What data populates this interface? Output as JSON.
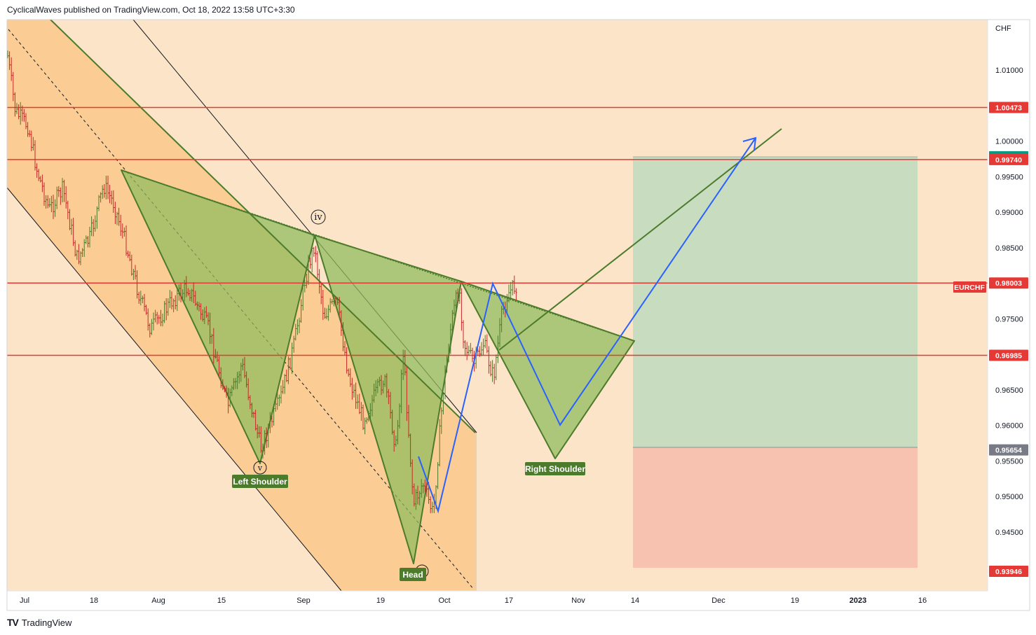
{
  "header": {
    "text": "CyclicalWaves published on TradingView.com, Oct 18, 2022 13:58 UTC+3:30"
  },
  "footer": {
    "logo": "TV",
    "brand": "TradingView"
  },
  "colors": {
    "background": "#fce4c8",
    "channel_fill": "#fbcd95",
    "pattern_fill": "#8fbb5c",
    "pattern_stroke": "#4b7b2b",
    "projection_blue": "#2962ff",
    "level_red": "#e53935",
    "target_zone": "#c8dcc0",
    "stop_zone": "#f8c2b0",
    "candle_up": "#4b7b2b",
    "candle_down": "#c62828"
  },
  "chart_data": {
    "type": "candlestick",
    "symbol": "EURCHF",
    "currency": "CHF",
    "x_ticks": [
      "Jul",
      "18",
      "Aug",
      "15",
      "Sep",
      "19",
      "Oct",
      "17",
      "Nov",
      "14",
      "Dec",
      "19",
      "2023",
      "16"
    ],
    "y_ticks": [
      "1.01000",
      "1.00000",
      "0.99500",
      "0.99000",
      "0.98500",
      "0.98000",
      "0.97500",
      "0.96500",
      "0.96000",
      "0.95500",
      "0.95000",
      "0.94500"
    ],
    "ylim": [
      0.9375,
      1.0125
    ],
    "horizontal_levels": [
      1.00473,
      0.9974,
      0.98003,
      0.96985
    ],
    "price_tags": [
      {
        "value": 1.00473,
        "label": "1.00473",
        "color": "#e53935"
      },
      {
        "value": 0.99779,
        "label": "0.99779",
        "color": "#089981"
      },
      {
        "value": 0.9974,
        "label": "0.99740",
        "color": "#e53935"
      },
      {
        "value": 0.98003,
        "label": "0.98003",
        "color": "#e53935"
      },
      {
        "value": 0.96985,
        "label": "0.96985",
        "color": "#e53935"
      },
      {
        "value": 0.95654,
        "label": "0.95654",
        "color": "#787b86"
      },
      {
        "value": 0.93946,
        "label": "0.93946",
        "color": "#e53935"
      }
    ],
    "symbol_tag": "EURCHF",
    "pattern_labels": [
      "Left Shoulder",
      "Head",
      "Right Shoulder"
    ],
    "wave_labels": [
      "iv",
      "v"
    ],
    "position": {
      "entry": 0.95654,
      "target": 0.99779,
      "stop": 0.93946
    }
  }
}
